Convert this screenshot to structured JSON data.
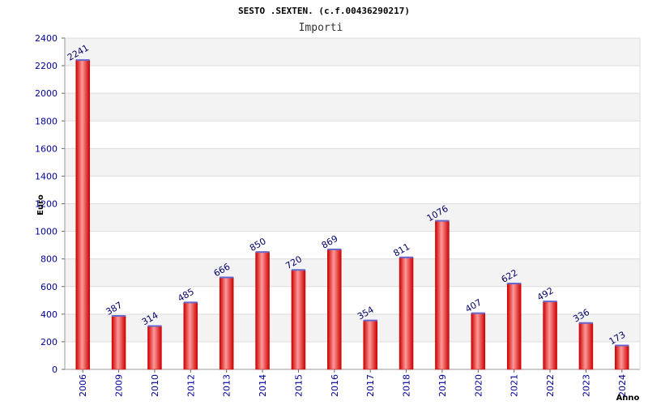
{
  "chart_data": {
    "type": "bar",
    "title": "SESTO .SEXTEN. (c.f.00436290217)",
    "subtitle": "Importi",
    "ylabel": "Euro",
    "xlabel": "Anno",
    "ylim": [
      0,
      2400
    ],
    "yticks": [
      "0",
      "200",
      "400",
      "600",
      "800",
      "1000",
      "1200",
      "1400",
      "1600",
      "1800",
      "2000",
      "2200",
      "2400"
    ],
    "grid": true,
    "categories": [
      "2006",
      "2009",
      "2010",
      "2012",
      "2013",
      "2014",
      "2015",
      "2016",
      "2017",
      "2018",
      "2019",
      "2020",
      "2021",
      "2022",
      "2023",
      "2024"
    ],
    "values": [
      2241,
      387,
      314,
      485,
      666,
      850,
      720,
      869,
      354,
      811,
      1076,
      407,
      622,
      492,
      336,
      173
    ],
    "labels": [
      "2241",
      "387",
      "314",
      "485",
      "666",
      "850",
      "720",
      "869",
      "354",
      "811",
      "1076",
      "407",
      "622",
      "492",
      "336",
      "173"
    ],
    "colors": {
      "bar_edge": "#cc0000",
      "bar_mid": "#ff9999",
      "bar_top": "#6666cc",
      "band_alt": "#f3f3f3",
      "grid": "#dddddd"
    }
  }
}
